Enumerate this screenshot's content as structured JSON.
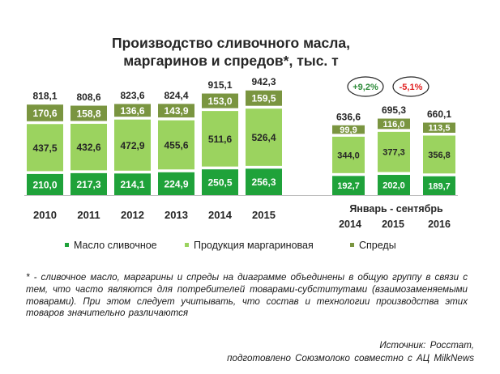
{
  "title_line1": "Производство сливочного масла,",
  "title_line2": "маргаринов и спредов*, тыс. т",
  "chart_data": {
    "type": "bar",
    "stacked": true,
    "colors": {
      "butter": "#1fa23a",
      "margarine": "#9bd35f",
      "spreads": "#7a9540"
    },
    "annual": {
      "categories": [
        "2010",
        "2011",
        "2012",
        "2013",
        "2014",
        "2015"
      ],
      "series": [
        {
          "key": "butter",
          "name": "Масло сливочное",
          "values": [
            210.0,
            217.3,
            214.1,
            224.9,
            250.5,
            256.3
          ],
          "labels": [
            "210,0",
            "217,3",
            "214,1",
            "224,9",
            "250,5",
            "256,3"
          ]
        },
        {
          "key": "margarine",
          "name": "Продукция маргариновая",
          "values": [
            437.5,
            432.6,
            472.9,
            455.6,
            511.6,
            526.4
          ],
          "labels": [
            "437,5",
            "432,6",
            "472,9",
            "455,6",
            "511,6",
            "526,4"
          ]
        },
        {
          "key": "spreads",
          "name": "Спреды",
          "values": [
            170.6,
            158.8,
            136.6,
            143.9,
            153.0,
            159.5
          ],
          "labels": [
            "170,6",
            "158,8",
            "136,6",
            "143,9",
            "153,0",
            "159,5"
          ]
        }
      ],
      "totals": [
        818.1,
        808.6,
        823.6,
        824.4,
        915.1,
        942.3
      ],
      "total_labels": [
        "818,1",
        "808,6",
        "823,6",
        "824,4",
        "915,1",
        "942,3"
      ]
    },
    "partial": {
      "period_label": "Январь - сентябрь",
      "categories": [
        "2014",
        "2015",
        "2016"
      ],
      "series": [
        {
          "key": "butter",
          "values": [
            192.7,
            202.0,
            189.7
          ],
          "labels": [
            "192,7",
            "202,0",
            "189,7"
          ]
        },
        {
          "key": "margarine",
          "values": [
            344.0,
            377.3,
            356.8
          ],
          "labels": [
            "344,0",
            "377,3",
            "356,8"
          ]
        },
        {
          "key": "spreads",
          "values": [
            99.9,
            116.0,
            113.5
          ],
          "labels": [
            "99,9",
            "116,0",
            "113,5"
          ]
        }
      ],
      "totals": [
        636.6,
        695.3,
        660.1
      ],
      "total_labels": [
        "636,6",
        "695,3",
        "660,1"
      ],
      "changes": [
        {
          "label": "+9,2%",
          "color": "#2e8b3a"
        },
        {
          "label": "-5,1%",
          "color": "#e02020"
        }
      ]
    },
    "legend": [
      "Масло сливочное",
      "Продукция маргариновая",
      "Спреды"
    ],
    "legend_position": "bottom",
    "grid": false
  },
  "footnote": "* - сливочное масло, маргарины и спреды на диаграмме объединены в общую группу в связи с тем, что часто являются для потребителей товарами-субститутами (взаимозаменяемыми товарами). При этом следует учитывать, что состав и технологии производства этих товаров значительно различаются",
  "source_line1": "Источник: Росстат,",
  "source_line2": "подготовлено Союзмолоко совместно с АЦ MilkNews"
}
